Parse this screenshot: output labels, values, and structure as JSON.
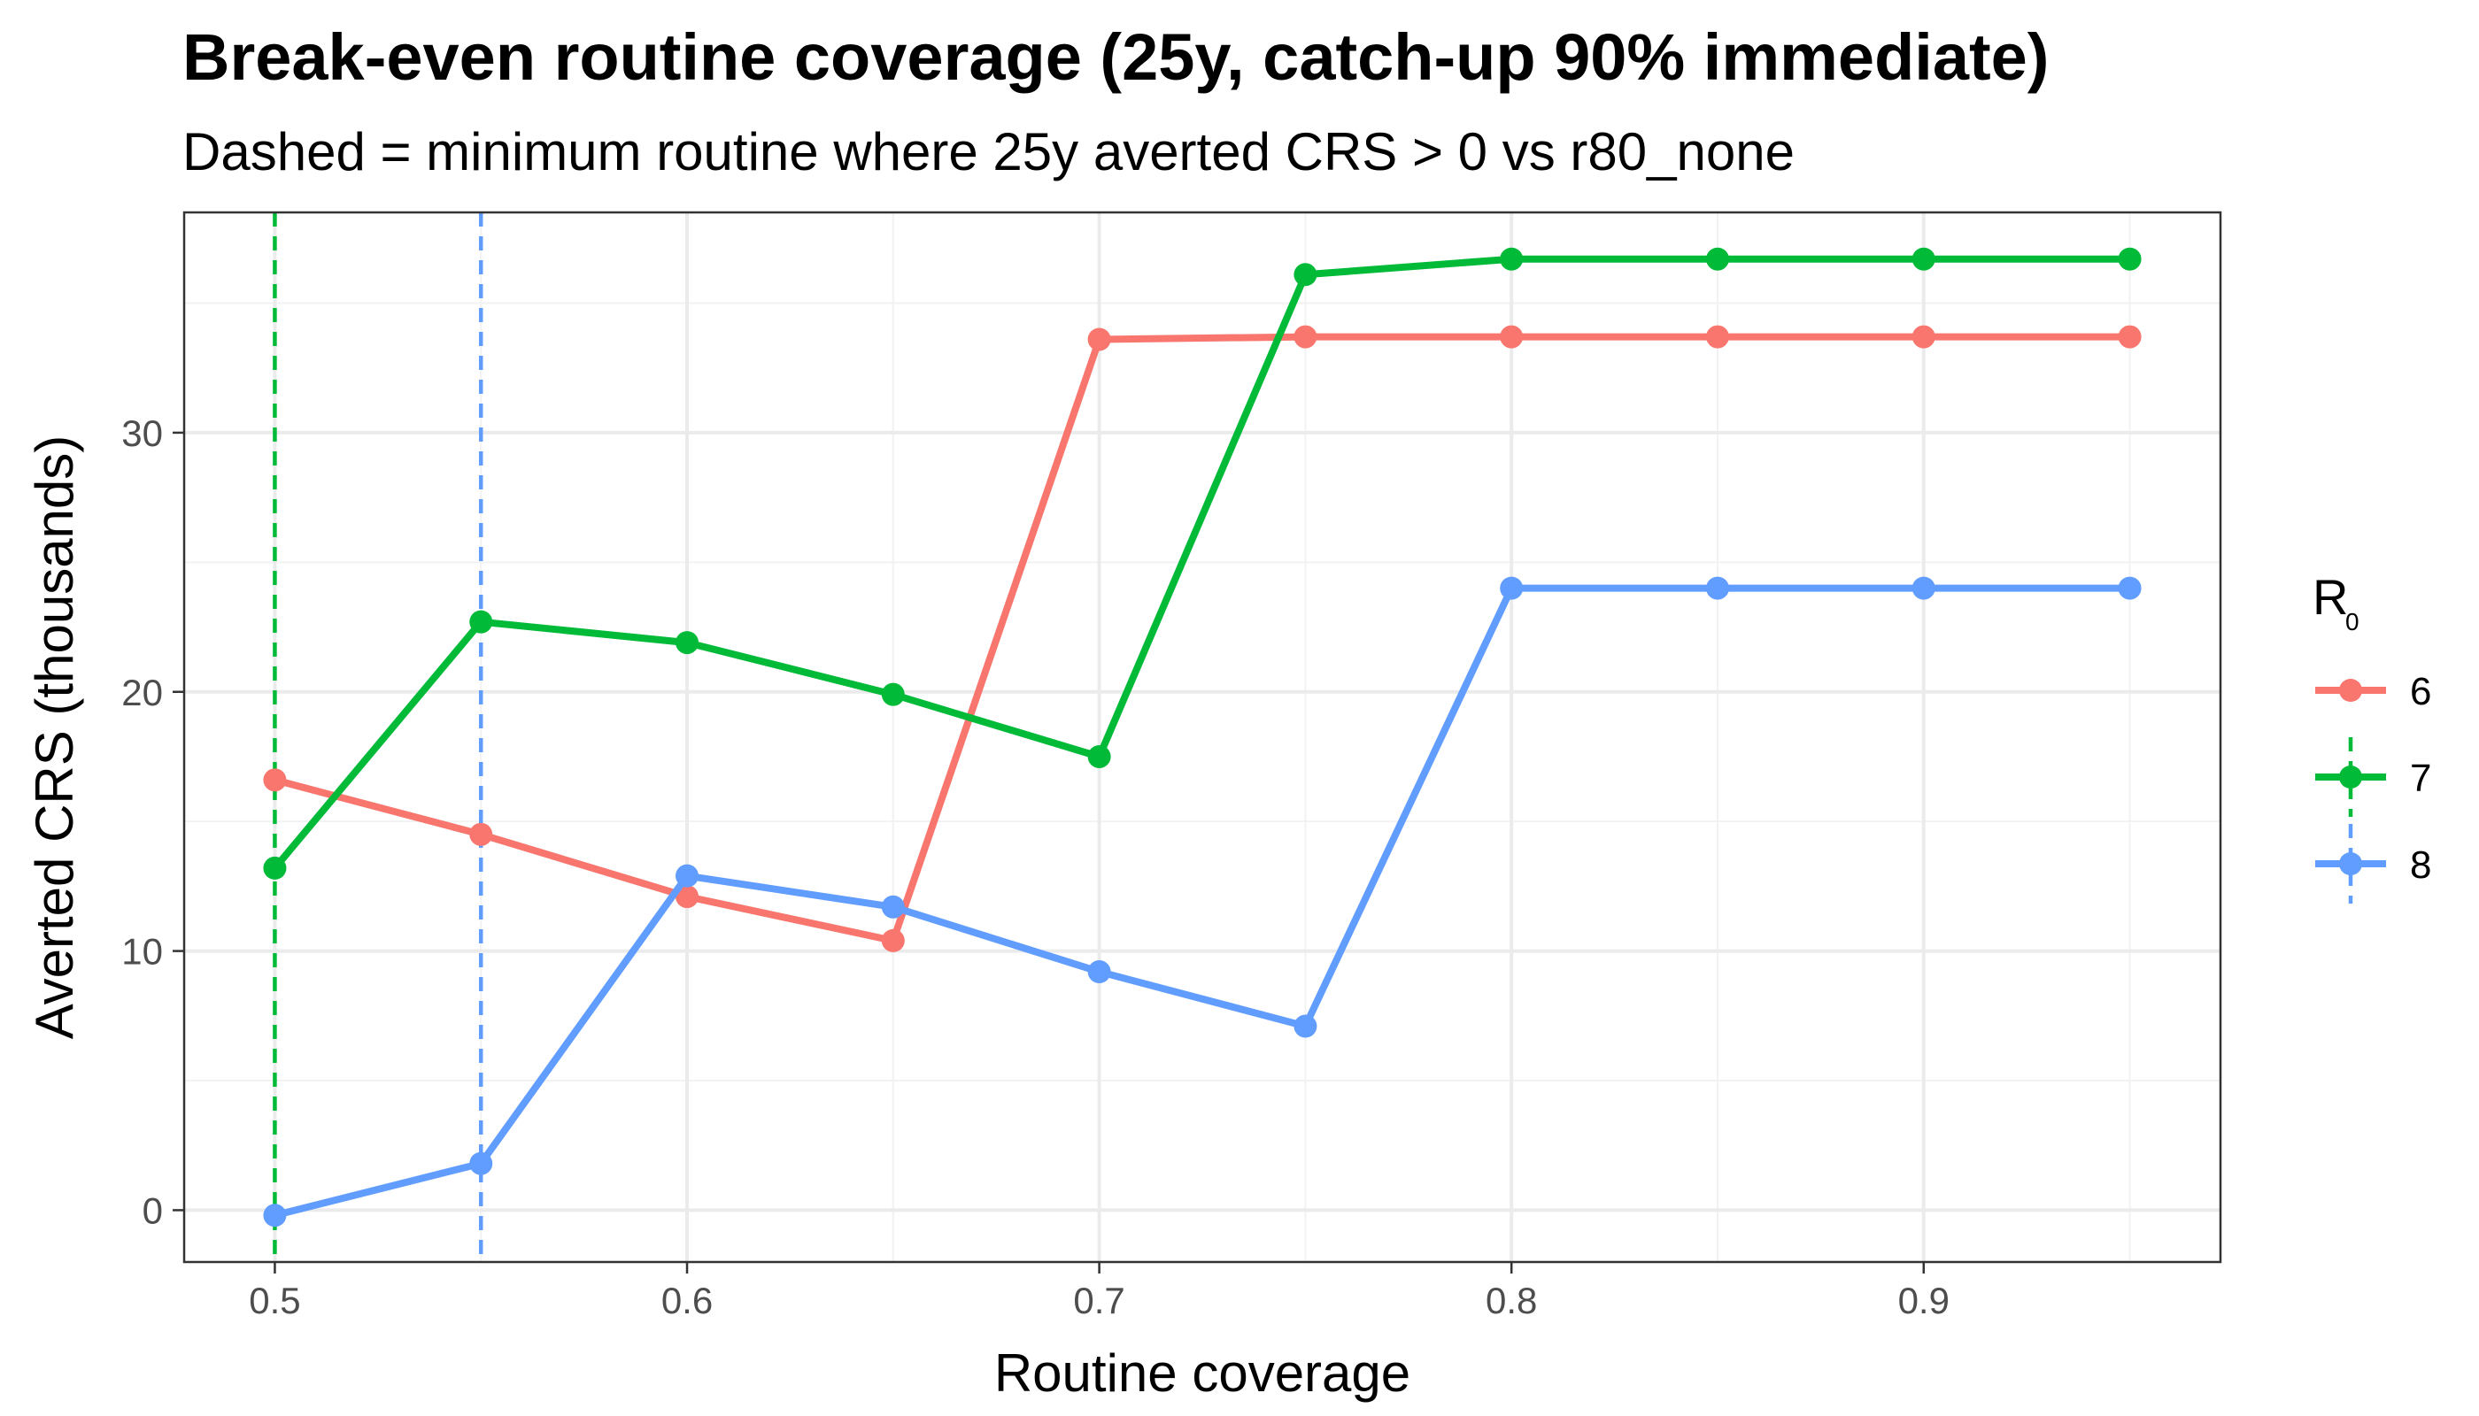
{
  "chart_data": {
    "type": "line",
    "title": "Break-even routine coverage (25y, catch-up 90% immediate)",
    "subtitle": "Dashed = minimum routine where 25y averted CRS > 0 vs r80_none",
    "xlabel": "Routine coverage",
    "ylabel": "Averted CRS (thousands)",
    "xlim": [
      0.478,
      0.972
    ],
    "ylim": [
      -2.0,
      38.5
    ],
    "x_ticks": [
      0.5,
      0.6,
      0.7,
      0.8,
      0.9
    ],
    "x_tick_labels": [
      "0.5",
      "0.6",
      "0.7",
      "0.8",
      "0.9"
    ],
    "x_minor_grid": [
      0.55,
      0.65,
      0.75,
      0.85,
      0.95
    ],
    "y_ticks": [
      0,
      10,
      20,
      30
    ],
    "y_tick_labels": [
      "0",
      "10",
      "20",
      "30"
    ],
    "y_minor_grid": [
      5,
      15,
      25,
      35
    ],
    "grid": true,
    "legend": {
      "title_main": "R",
      "title_sub": "0",
      "placement": "right"
    },
    "series": [
      {
        "name": "6",
        "color": "#F8766D",
        "x": [
          0.5,
          0.55,
          0.6,
          0.65,
          0.7,
          0.75,
          0.8,
          0.85,
          0.9,
          0.95
        ],
        "values": [
          16.6,
          14.5,
          12.1,
          10.4,
          33.6,
          33.7,
          33.7,
          33.7,
          33.7,
          33.7
        ],
        "break_even": null
      },
      {
        "name": "7",
        "color": "#00BA38",
        "x": [
          0.5,
          0.55,
          0.6,
          0.65,
          0.7,
          0.75,
          0.8,
          0.85,
          0.9,
          0.95
        ],
        "values": [
          13.2,
          22.7,
          21.9,
          19.9,
          17.5,
          36.1,
          36.7,
          36.7,
          36.7,
          36.7
        ],
        "break_even": 0.5
      },
      {
        "name": "8",
        "color": "#619CFF",
        "x": [
          0.5,
          0.55,
          0.6,
          0.65,
          0.7,
          0.75,
          0.8,
          0.85,
          0.9,
          0.95
        ],
        "values": [
          -0.2,
          1.8,
          12.9,
          11.7,
          9.2,
          7.1,
          24.0,
          24.0,
          24.0,
          24.0
        ],
        "break_even": 0.55
      }
    ]
  }
}
